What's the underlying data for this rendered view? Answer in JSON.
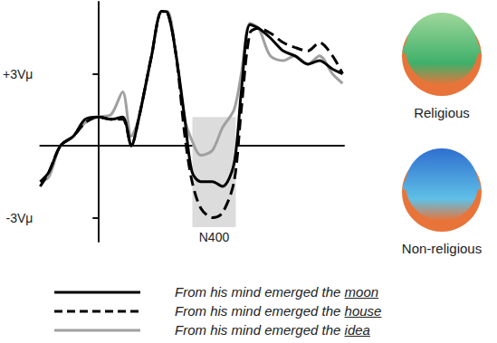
{
  "chart_data": {
    "type": "line",
    "x": [
      -200,
      -170,
      -130,
      -85,
      -45,
      0,
      45,
      85,
      115,
      140,
      185,
      220,
      240,
      270,
      300,
      325,
      355,
      395,
      430,
      470,
      495,
      525,
      555,
      595,
      640,
      680,
      725,
      765,
      810,
      845
    ],
    "series": [
      {
        "name": "From his mind emerged the moon",
        "color": "#000000",
        "line_style": "solid",
        "values": [
          -1.5,
          -1.1,
          0,
          0.4,
          1.1,
          1.2,
          1.1,
          1.2,
          0,
          1.1,
          3.75,
          5.6,
          5.55,
          3.75,
          1.1,
          -1.1,
          -1.5,
          -1.5,
          -1.7,
          -0.75,
          2.25,
          5.05,
          4.9,
          4.5,
          3.95,
          3.75,
          3.4,
          3.55,
          3.2,
          3.0
        ]
      },
      {
        "name": "From his mind emerged the house",
        "color": "#000000",
        "line_style": "dashed",
        "values": [
          -1.7,
          -1.1,
          0,
          0.4,
          0.95,
          1.2,
          1.1,
          1.1,
          0,
          1.1,
          3.75,
          5.6,
          5.55,
          3.75,
          0.4,
          -1.5,
          -2.6,
          -3.0,
          -2.8,
          -1.5,
          1.5,
          4.7,
          4.9,
          4.7,
          4.3,
          4.1,
          3.95,
          4.3,
          3.75,
          3.0
        ]
      },
      {
        "name": "From his mind emerged the idea",
        "color": "#a0a0a0",
        "line_style": "solid",
        "values": [
          -1.5,
          -1.3,
          0,
          0.4,
          0.95,
          1.2,
          1.3,
          2.25,
          0.4,
          1.1,
          3.75,
          5.6,
          5.6,
          3.75,
          1.1,
          0.2,
          -0.4,
          -0.2,
          0.75,
          1.5,
          3.0,
          5.1,
          4.9,
          3.75,
          3.55,
          3.75,
          3.4,
          3.75,
          3.0,
          2.6
        ]
      }
    ],
    "xlim": [
      -200,
      850
    ],
    "ylim": [
      -4,
      6
    ],
    "yticks": [
      {
        "value": 3,
        "label": "+3Vμ"
      },
      {
        "value": -3,
        "label": "-3Vμ"
      }
    ],
    "tick_labels": "y",
    "grid": false,
    "shaded_region": {
      "x": [
        326,
        476
      ],
      "y": [
        -3.4,
        1.2
      ],
      "label": "N400"
    },
    "topographies": [
      {
        "label": "Religious"
      },
      {
        "label": "Non-religious"
      }
    ]
  }
}
